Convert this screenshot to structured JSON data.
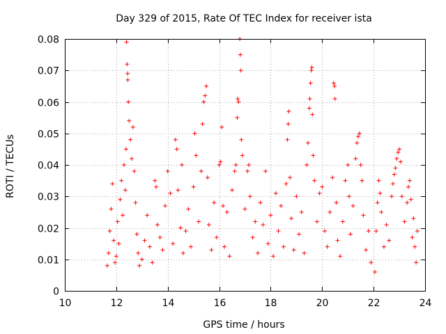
{
  "chart_data": {
    "type": "scatter",
    "title": "Day 329 of 2015, Rate Of TEC Index for receiver ista",
    "xlabel": "GPS time / hours",
    "ylabel": "ROTI / TECUs",
    "xlim": [
      10,
      24
    ],
    "ylim": [
      0,
      0.08
    ],
    "grid": true,
    "x_ticks": [
      10,
      12,
      14,
      16,
      18,
      20,
      22,
      24
    ],
    "x_tick_labels": [
      "10",
      "12",
      "14",
      "16",
      "18",
      "20",
      "22",
      "24"
    ],
    "y_ticks": [
      0,
      0.01,
      0.02,
      0.03,
      0.04,
      0.05,
      0.06,
      0.07,
      0.08
    ],
    "y_tick_labels": [
      "0",
      "0.01",
      "0.02",
      "0.03",
      "0.04",
      "0.05",
      "0.06",
      "0.07",
      "0.08"
    ],
    "marker": "+",
    "marker_color": "#ff0000",
    "series": [
      {
        "name": "ROTI",
        "points": [
          [
            11.65,
            0.008
          ],
          [
            11.7,
            0.012
          ],
          [
            11.75,
            0.019
          ],
          [
            11.8,
            0.026
          ],
          [
            11.85,
            0.034
          ],
          [
            11.9,
            0.016
          ],
          [
            11.95,
            0.009
          ],
          [
            12.0,
            0.011
          ],
          [
            12.05,
            0.022
          ],
          [
            12.1,
            0.015
          ],
          [
            12.15,
            0.029
          ],
          [
            12.2,
            0.035
          ],
          [
            12.25,
            0.024
          ],
          [
            12.3,
            0.04
          ],
          [
            12.35,
            0.032
          ],
          [
            12.38,
            0.045
          ],
          [
            12.4,
            0.079
          ],
          [
            12.42,
            0.072
          ],
          [
            12.44,
            0.069
          ],
          [
            12.45,
            0.067
          ],
          [
            12.47,
            0.06
          ],
          [
            12.5,
            0.054
          ],
          [
            12.55,
            0.048
          ],
          [
            12.6,
            0.042
          ],
          [
            12.65,
            0.052
          ],
          [
            12.7,
            0.038
          ],
          [
            12.75,
            0.028
          ],
          [
            12.8,
            0.018
          ],
          [
            12.85,
            0.012
          ],
          [
            12.9,
            0.008
          ],
          [
            13.0,
            0.01
          ],
          [
            13.1,
            0.016
          ],
          [
            13.2,
            0.024
          ],
          [
            13.3,
            0.014
          ],
          [
            13.4,
            0.009
          ],
          [
            13.5,
            0.035
          ],
          [
            13.55,
            0.033
          ],
          [
            13.6,
            0.021
          ],
          [
            13.7,
            0.017
          ],
          [
            13.8,
            0.013
          ],
          [
            13.9,
            0.027
          ],
          [
            14.0,
            0.038
          ],
          [
            14.1,
            0.031
          ],
          [
            14.2,
            0.015
          ],
          [
            14.3,
            0.048
          ],
          [
            14.35,
            0.045
          ],
          [
            14.4,
            0.032
          ],
          [
            14.5,
            0.02
          ],
          [
            14.55,
            0.04
          ],
          [
            14.6,
            0.012
          ],
          [
            14.7,
            0.019
          ],
          [
            14.8,
            0.026
          ],
          [
            14.9,
            0.014
          ],
          [
            15.0,
            0.033
          ],
          [
            15.05,
            0.05
          ],
          [
            15.1,
            0.043
          ],
          [
            15.2,
            0.022
          ],
          [
            15.3,
            0.038
          ],
          [
            15.35,
            0.053
          ],
          [
            15.4,
            0.06
          ],
          [
            15.45,
            0.062
          ],
          [
            15.5,
            0.065
          ],
          [
            15.55,
            0.036
          ],
          [
            15.6,
            0.021
          ],
          [
            15.7,
            0.013
          ],
          [
            15.8,
            0.028
          ],
          [
            15.9,
            0.017
          ],
          [
            16.0,
            0.04
          ],
          [
            16.05,
            0.041
          ],
          [
            16.1,
            0.052
          ],
          [
            16.15,
            0.027
          ],
          [
            16.2,
            0.014
          ],
          [
            16.3,
            0.025
          ],
          [
            16.4,
            0.011
          ],
          [
            16.5,
            0.032
          ],
          [
            16.6,
            0.038
          ],
          [
            16.65,
            0.04
          ],
          [
            16.7,
            0.055
          ],
          [
            16.72,
            0.061
          ],
          [
            16.75,
            0.06
          ],
          [
            16.8,
            0.08
          ],
          [
            16.82,
            0.075
          ],
          [
            16.84,
            0.07
          ],
          [
            16.86,
            0.048
          ],
          [
            16.9,
            0.043
          ],
          [
            17.0,
            0.026
          ],
          [
            17.1,
            0.038
          ],
          [
            17.15,
            0.04
          ],
          [
            17.2,
            0.03
          ],
          [
            17.3,
            0.017
          ],
          [
            17.4,
            0.022
          ],
          [
            17.5,
            0.012
          ],
          [
            17.6,
            0.028
          ],
          [
            17.7,
            0.021
          ],
          [
            17.8,
            0.038
          ],
          [
            17.9,
            0.015
          ],
          [
            18.0,
            0.024
          ],
          [
            18.1,
            0.011
          ],
          [
            18.2,
            0.031
          ],
          [
            18.3,
            0.019
          ],
          [
            18.4,
            0.027
          ],
          [
            18.5,
            0.014
          ],
          [
            18.6,
            0.034
          ],
          [
            18.65,
            0.048
          ],
          [
            18.68,
            0.053
          ],
          [
            18.7,
            0.057
          ],
          [
            18.75,
            0.036
          ],
          [
            18.8,
            0.023
          ],
          [
            18.9,
            0.013
          ],
          [
            19.0,
            0.03
          ],
          [
            19.1,
            0.018
          ],
          [
            19.2,
            0.025
          ],
          [
            19.3,
            0.012
          ],
          [
            19.4,
            0.04
          ],
          [
            19.45,
            0.047
          ],
          [
            19.5,
            0.058
          ],
          [
            19.52,
            0.061
          ],
          [
            19.55,
            0.066
          ],
          [
            19.58,
            0.07
          ],
          [
            19.6,
            0.071
          ],
          [
            19.62,
            0.056
          ],
          [
            19.65,
            0.043
          ],
          [
            19.7,
            0.035
          ],
          [
            19.8,
            0.022
          ],
          [
            19.9,
            0.031
          ],
          [
            20.0,
            0.033
          ],
          [
            20.1,
            0.019
          ],
          [
            20.2,
            0.014
          ],
          [
            20.3,
            0.025
          ],
          [
            20.4,
            0.036
          ],
          [
            20.45,
            0.066
          ],
          [
            20.48,
            0.065
          ],
          [
            20.5,
            0.061
          ],
          [
            20.55,
            0.028
          ],
          [
            20.6,
            0.016
          ],
          [
            20.7,
            0.011
          ],
          [
            20.8,
            0.022
          ],
          [
            20.9,
            0.035
          ],
          [
            21.0,
            0.04
          ],
          [
            21.05,
            0.03
          ],
          [
            21.1,
            0.018
          ],
          [
            21.2,
            0.027
          ],
          [
            21.3,
            0.042
          ],
          [
            21.35,
            0.047
          ],
          [
            21.4,
            0.049
          ],
          [
            21.45,
            0.05
          ],
          [
            21.5,
            0.04
          ],
          [
            21.55,
            0.035
          ],
          [
            21.6,
            0.024
          ],
          [
            21.7,
            0.013
          ],
          [
            21.8,
            0.019
          ],
          [
            21.9,
            0.009
          ],
          [
            22.05,
            0.006
          ],
          [
            22.1,
            0.019
          ],
          [
            22.15,
            0.028
          ],
          [
            22.2,
            0.035
          ],
          [
            22.25,
            0.031
          ],
          [
            22.3,
            0.025
          ],
          [
            22.4,
            0.014
          ],
          [
            22.5,
            0.021
          ],
          [
            22.6,
            0.016
          ],
          [
            22.7,
            0.03
          ],
          [
            22.75,
            0.034
          ],
          [
            22.8,
            0.037
          ],
          [
            22.85,
            0.039
          ],
          [
            22.9,
            0.042
          ],
          [
            22.95,
            0.044
          ],
          [
            23.0,
            0.045
          ],
          [
            23.05,
            0.041
          ],
          [
            23.1,
            0.03
          ],
          [
            23.2,
            0.022
          ],
          [
            23.3,
            0.028
          ],
          [
            23.35,
            0.033
          ],
          [
            23.4,
            0.035
          ],
          [
            23.45,
            0.029
          ],
          [
            23.5,
            0.017
          ],
          [
            23.55,
            0.023
          ],
          [
            23.6,
            0.014
          ],
          [
            23.65,
            0.009
          ],
          [
            23.7,
            0.019
          ]
        ]
      }
    ]
  }
}
